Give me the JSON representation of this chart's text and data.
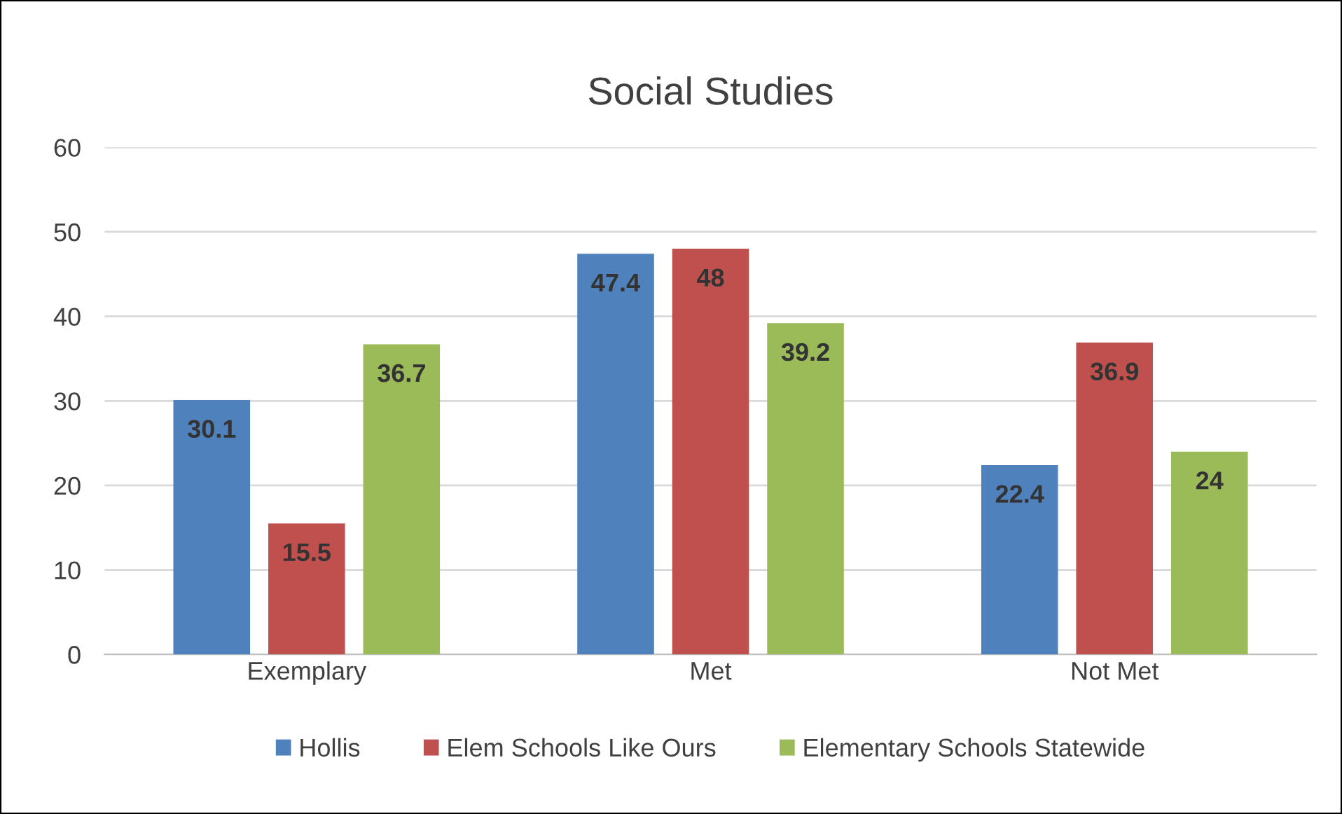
{
  "chart_data": {
    "type": "bar",
    "title": "Social Studies",
    "categories": [
      "Exemplary",
      "Met",
      "Not Met"
    ],
    "series": [
      {
        "name": "Hollis",
        "color": "#4f81bd",
        "values": [
          30.1,
          47.4,
          22.4
        ]
      },
      {
        "name": "Elem Schools Like Ours",
        "color": "#c0504d",
        "values": [
          15.5,
          48,
          36.9
        ]
      },
      {
        "name": "Elementary Schools Statewide",
        "color": "#9bbb59",
        "values": [
          36.7,
          39.2,
          24
        ]
      }
    ],
    "ylim": [
      0,
      60
    ],
    "yticks": [
      0,
      10,
      20,
      30,
      40,
      50,
      60
    ],
    "grid": "y",
    "legend": "bottom",
    "data_labels": true
  }
}
